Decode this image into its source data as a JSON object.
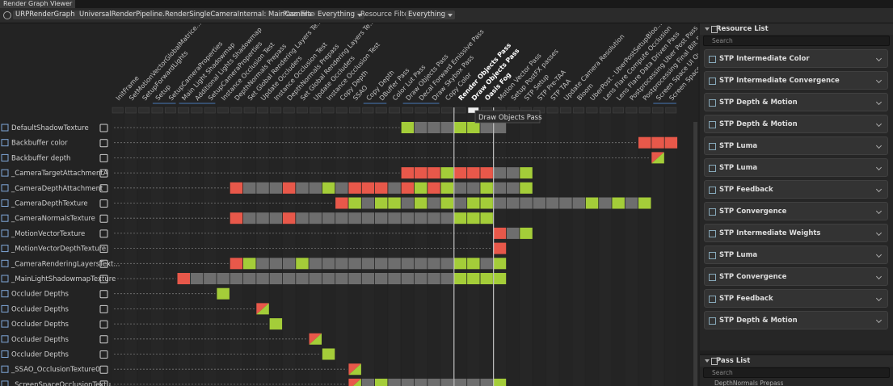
{
  "window": {
    "title": "Render Graph Viewer"
  },
  "toolbar": {
    "graph": "URPRenderGraph",
    "execution": "UniversalRenderPipeline.RenderSingleCameraInternal: MainCamera",
    "pass_filter_label": "Pass Filter",
    "pass_filter_value": "Everything",
    "resource_filter_label": "Resource Filter",
    "resource_filter_value": "Everything"
  },
  "passes": [
    "InitFrame",
    "SetMotionVectorGlobalMatrice...",
    "SetupForwardLights",
    "Setup",
    "SetupCameraProperties",
    "Main Light Shadowmap",
    "Additional Lights Shadowmap",
    "SetupCameraProperties",
    "Instance Occlusion Test",
    "DepthNormals Prepass",
    "Set Global Rendering Layers Te...",
    "Update Occluders",
    "Instance Occlusion Test",
    "DepthNormals Prepass",
    "Set Global Rendering Layers Te...",
    "Update Occluders",
    "Instance Occlusion Test",
    "Copy Depth",
    "SSAO",
    "Copy Depth",
    "DBuffer Pass",
    "Color Lut Pass",
    "Draw Objects Pass",
    "Decal Forward Emissive Pass",
    "Draw Skybox Pass",
    "Copy Color",
    "Render Objects Pass",
    "Draw Objects Pass",
    "Oasis Fog",
    "Motion Vector Pass",
    "Setup PostFX passes",
    "STP Setup",
    "STP Pre-TAA",
    "STP TAA",
    "Update Camera Resolution",
    "Bloom",
    "UberPost - UberPostSetupBloo...",
    "Lens Flare Compute Occlusion",
    "Lens Flare Data Driven Pass",
    "Postprocessing Uber Post Pass",
    "Postprocessing Final Blit Pass",
    "Screen Space UI Overlay...",
    "Screen Space UI..."
  ],
  "resources": [
    "DefaultShadowTexture",
    "Backbuffer color",
    "Backbuffer depth",
    "_CameraTargetAttachmentA",
    "_CameraDepthAttachment",
    "_CameraDepthTexture",
    "_CameraNormalsTexture",
    "_MotionVectorTexture",
    "_MotionVectorDepthTexture",
    "_CameraRenderingLayersText...",
    "_MainLightShadowmapTexture",
    "Occluder Depths",
    "Occluder Depths",
    "Occluder Depths",
    "Occluder Depths",
    "Occluder Depths",
    "_SSAO_OcclusionTexture0",
    "_ScreenSpaceOcclusionTextu..."
  ],
  "tooltip": "Draw Objects Pass",
  "resource_list": {
    "title": "Resource List",
    "search": "Search",
    "items": [
      "STP Intermediate Color",
      "STP Intermediate Convergence",
      "STP Depth & Motion",
      "STP Depth & Motion",
      "STP Luma",
      "STP Luma",
      "STP Feedback",
      "STP Convergence",
      "STP Intermediate Weights",
      "STP Luma",
      "STP Convergence",
      "STP Feedback",
      "STP Depth & Motion"
    ]
  },
  "pass_list": {
    "title": "Pass List",
    "search": "Search",
    "items": [
      "DepthNormals Prepass"
    ]
  }
}
